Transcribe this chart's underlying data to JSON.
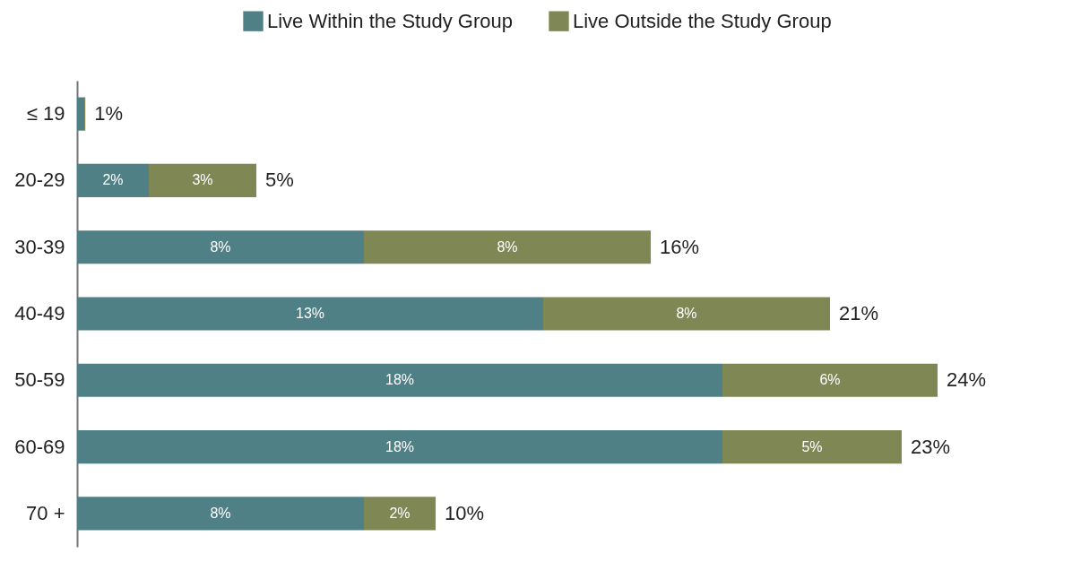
{
  "chart_data": {
    "type": "bar",
    "orientation": "horizontal",
    "stacked": true,
    "categories": [
      "≤ 19",
      "20-29",
      "30-39",
      "40-49",
      "50-59",
      "60-69",
      "70 +"
    ],
    "series": [
      {
        "name": "Live Within the Study Group",
        "color": "#4e8086",
        "values": [
          0.2,
          2,
          8,
          13,
          18,
          18,
          8
        ],
        "value_labels": [
          null,
          "2%",
          "8%",
          "13%",
          "18%",
          "18%",
          "8%"
        ]
      },
      {
        "name": "Live Outside the Study Group",
        "color": "#7f8755",
        "values": [
          0.03,
          3,
          8,
          8,
          6,
          5,
          2
        ],
        "value_labels": [
          null,
          "3%",
          "8%",
          "8%",
          "6%",
          "5%",
          "2%"
        ]
      }
    ],
    "totals": [
      "1%",
      "5%",
      "16%",
      "21%",
      "24%",
      "23%",
      "10%"
    ],
    "legend": "top right",
    "tick_labels": "y",
    "grid": false
  }
}
